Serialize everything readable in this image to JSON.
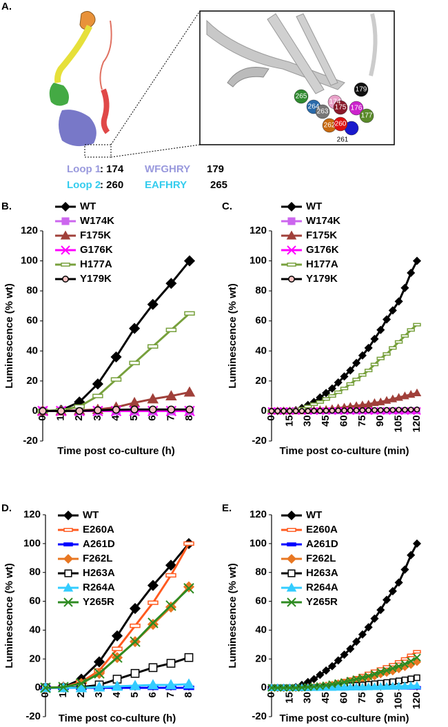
{
  "figure_a": {
    "label": "A.",
    "sphere_labels": [
      "265",
      "264",
      "263",
      "174",
      "175",
      "176",
      "177",
      "179",
      "262",
      "260",
      "261"
    ],
    "loops": [
      {
        "name": "Loop 1",
        "start": ": 174",
        "sequence": "WFGHRY",
        "end": "179"
      },
      {
        "name": "Loop 2",
        "start": ": 260",
        "sequence": "EAFHRY",
        "end": "265"
      }
    ]
  },
  "chart_data": [
    {
      "type": "line",
      "panel_label": "B.",
      "y_label": "Luminescence (% wt)",
      "x_label": "Time post co-culture (h)",
      "x": [
        0,
        1,
        2,
        3,
        4,
        5,
        6,
        7,
        8
      ],
      "xlim": [
        0,
        8
      ],
      "xticks": [
        0,
        1,
        2,
        3,
        4,
        5,
        6,
        7,
        8
      ],
      "ylim": [
        -20,
        120
      ],
      "yticks": [
        -20,
        0,
        20,
        40,
        60,
        80,
        100,
        120
      ],
      "series": [
        {
          "name": "WT",
          "color": "#000000",
          "marker": "diamond",
          "values": [
            0,
            0.5,
            6,
            18,
            36,
            55,
            71,
            85,
            100
          ]
        },
        {
          "name": "W174K",
          "color": "#cc66ee",
          "marker": "square",
          "values": [
            0,
            0,
            0,
            0,
            0,
            0,
            0,
            0,
            0
          ]
        },
        {
          "name": "F175K",
          "color": "#a0403a",
          "marker": "triangle",
          "values": [
            0,
            0,
            0.5,
            1,
            2.5,
            5.5,
            8,
            10,
            12.5
          ]
        },
        {
          "name": "G176K",
          "color": "#ff00ff",
          "marker": "x",
          "values": [
            0,
            0,
            0,
            0,
            0,
            0,
            0,
            0,
            0
          ]
        },
        {
          "name": "H177A",
          "color": "#77a03c",
          "marker": "dash",
          "marker_fill": "#ffffff",
          "values": [
            0,
            0.5,
            3,
            10,
            21,
            32,
            43,
            54,
            65
          ]
        },
        {
          "name": "Y179K",
          "color": "#000000",
          "marker": "circle",
          "marker_fill": "#f4c2c2",
          "values": [
            0,
            0,
            0,
            0.5,
            0.8,
            1,
            1,
            1,
            1
          ]
        }
      ]
    },
    {
      "type": "line",
      "panel_label": "C.",
      "y_label": "Luminescence (% wt)",
      "x_label": "Time post co-culture (min)",
      "x": [
        0,
        5,
        10,
        15,
        20,
        25,
        30,
        35,
        40,
        45,
        50,
        55,
        60,
        65,
        70,
        75,
        80,
        85,
        90,
        95,
        100,
        105,
        110,
        115,
        120
      ],
      "xlim": [
        0,
        120
      ],
      "xticks": [
        0,
        15,
        30,
        45,
        60,
        75,
        90,
        105,
        120
      ],
      "ylim": [
        -20,
        120
      ],
      "yticks": [
        -20,
        0,
        20,
        40,
        60,
        80,
        100,
        120
      ],
      "series": [
        {
          "name": "WT",
          "color": "#000000",
          "marker": "diamond",
          "values": [
            0,
            0,
            0,
            0,
            0.5,
            2,
            4,
            6,
            9,
            12,
            15,
            19,
            23,
            27,
            32,
            37,
            42,
            48,
            54,
            61,
            67,
            73,
            82,
            92,
            100
          ]
        },
        {
          "name": "W174K",
          "color": "#cc66ee",
          "marker": "square",
          "values": [
            0,
            0,
            0,
            0,
            0,
            0,
            0,
            0,
            0,
            0,
            0,
            0,
            0,
            0,
            0,
            0,
            0,
            0,
            0,
            0,
            0,
            0,
            0,
            0,
            0
          ]
        },
        {
          "name": "F175K",
          "color": "#a0403a",
          "marker": "triangle",
          "values": [
            0,
            0,
            0,
            0,
            0,
            0,
            0.2,
            0.5,
            0.8,
            1,
            1.5,
            2,
            2.5,
            3,
            3.5,
            4,
            4.5,
            5.5,
            6,
            7,
            8,
            9,
            10,
            11,
            12
          ]
        },
        {
          "name": "G176K",
          "color": "#ff00ff",
          "marker": "x",
          "values": [
            0,
            0,
            0,
            0,
            0,
            0,
            0,
            0,
            0,
            0,
            0,
            0,
            0,
            0,
            0,
            0,
            0,
            0,
            0,
            0,
            0,
            0,
            0,
            0,
            0
          ]
        },
        {
          "name": "H177A",
          "color": "#77a03c",
          "marker": "dash",
          "marker_fill": "#ffffff",
          "values": [
            0,
            0,
            0,
            0,
            0.5,
            1.5,
            3,
            4.5,
            6,
            8,
            10,
            12.5,
            15,
            18,
            21,
            24,
            27,
            31,
            35,
            38,
            42,
            46,
            50,
            54,
            57.5
          ]
        },
        {
          "name": "Y179K",
          "color": "#000000",
          "marker": "circle",
          "marker_fill": "#f4c2c2",
          "values": [
            0,
            0,
            0,
            0,
            0,
            0,
            0,
            0.1,
            0.1,
            0.2,
            0.2,
            0.3,
            0.3,
            0.4,
            0.4,
            0.5,
            0.5,
            0.6,
            0.6,
            0.7,
            0.7,
            0.8,
            0.8,
            0.9,
            1
          ]
        }
      ]
    },
    {
      "type": "line",
      "panel_label": "D.",
      "y_label": "Luminescence (% wt)",
      "x_label": "Time post co-culture (h)",
      "x": [
        0,
        1,
        2,
        3,
        4,
        5,
        6,
        7,
        8
      ],
      "xlim": [
        0,
        8
      ],
      "xticks": [
        0,
        1,
        2,
        3,
        4,
        5,
        6,
        7,
        8
      ],
      "ylim": [
        -20,
        120
      ],
      "yticks": [
        -20,
        0,
        20,
        40,
        60,
        80,
        100,
        120
      ],
      "series": [
        {
          "name": "WT",
          "color": "#000000",
          "marker": "diamond",
          "values": [
            0,
            0.5,
            6,
            18,
            36,
            55,
            71,
            85,
            100
          ]
        },
        {
          "name": "E260A",
          "color": "#ff5a1f",
          "marker": "dash",
          "marker_fill": "#ffffff",
          "values": [
            0,
            0.5,
            4,
            12,
            27,
            43,
            59,
            78,
            100
          ]
        },
        {
          "name": "A261D",
          "color": "#0000ff",
          "marker": "dash",
          "values": [
            0,
            0,
            0,
            0,
            0,
            0,
            0,
            0,
            0
          ]
        },
        {
          "name": "F262L",
          "color": "#e87722",
          "marker": "diamond",
          "values": [
            0,
            0.5,
            3,
            10,
            21,
            32,
            44,
            56,
            70
          ]
        },
        {
          "name": "H263A",
          "color": "#000000",
          "marker": "square",
          "marker_fill": "#ffffff",
          "values": [
            0,
            0,
            0.5,
            2,
            6,
            10,
            14,
            17,
            21
          ]
        },
        {
          "name": "R264A",
          "color": "#33ccff",
          "marker": "triangle",
          "values": [
            0,
            0,
            0,
            0.5,
            1,
            1.5,
            2,
            2,
            2.5
          ]
        },
        {
          "name": "Y265R",
          "color": "#2e8b22",
          "marker": "x",
          "values": [
            0,
            0.5,
            3,
            10,
            21,
            32,
            45,
            57,
            69
          ]
        }
      ]
    },
    {
      "type": "line",
      "panel_label": "E.",
      "y_label": "Luminescence (% wt)",
      "x_label": "Time post co-culture (min)",
      "x": [
        0,
        5,
        10,
        15,
        20,
        25,
        30,
        35,
        40,
        45,
        50,
        55,
        60,
        65,
        70,
        75,
        80,
        85,
        90,
        95,
        100,
        105,
        110,
        115,
        120
      ],
      "xlim": [
        0,
        120
      ],
      "xticks": [
        0,
        15,
        30,
        45,
        60,
        75,
        90,
        105,
        120
      ],
      "ylim": [
        -20,
        120
      ],
      "yticks": [
        -20,
        0,
        20,
        40,
        60,
        80,
        100,
        120
      ],
      "series": [
        {
          "name": "WT",
          "color": "#000000",
          "marker": "diamond",
          "values": [
            0,
            0,
            0,
            0,
            0.5,
            2,
            4,
            6,
            9,
            12,
            15,
            19,
            23,
            27,
            32,
            37,
            42,
            48,
            54,
            61,
            67,
            73,
            82,
            92,
            100
          ]
        },
        {
          "name": "E260A",
          "color": "#ff5a1f",
          "marker": "dash",
          "marker_fill": "#ffffff",
          "values": [
            0,
            0,
            0,
            0,
            0,
            0.2,
            0.5,
            1,
            1.5,
            2,
            3,
            4,
            5,
            6,
            7,
            8.5,
            10,
            11.5,
            13,
            14.5,
            16,
            18,
            20,
            22.5,
            25
          ]
        },
        {
          "name": "A261D",
          "color": "#0000ff",
          "marker": "dash",
          "values": [
            0,
            0,
            0,
            0,
            0,
            0,
            0,
            0,
            0,
            0,
            0,
            0,
            0,
            0,
            0,
            0,
            0,
            0,
            0,
            0,
            0,
            0,
            0,
            0,
            0
          ]
        },
        {
          "name": "F262L",
          "color": "#e87722",
          "marker": "diamond",
          "values": [
            0,
            0,
            0,
            0,
            0,
            0.1,
            0.4,
            0.7,
            1,
            1.5,
            2,
            3,
            3.5,
            4.5,
            5,
            6,
            7,
            8,
            9.5,
            10.5,
            11.5,
            13,
            14.5,
            16,
            18
          ]
        },
        {
          "name": "H263A",
          "color": "#000000",
          "marker": "square",
          "marker_fill": "#ffffff",
          "values": [
            0,
            0,
            0,
            0,
            0,
            0,
            0.1,
            0.2,
            0.3,
            0.5,
            0.7,
            0.9,
            1.1,
            1.4,
            1.7,
            2,
            2.4,
            2.8,
            3.2,
            3.7,
            4.2,
            4.8,
            5.5,
            6.2,
            7
          ]
        },
        {
          "name": "R264A",
          "color": "#33ccff",
          "marker": "triangle",
          "values": [
            0,
            0,
            0,
            0,
            0,
            0,
            0,
            0.1,
            0.1,
            0.2,
            0.2,
            0.3,
            0.3,
            0.4,
            0.5,
            0.5,
            0.6,
            0.7,
            0.8,
            0.9,
            1,
            1.1,
            1.2,
            1.4,
            1.5
          ]
        },
        {
          "name": "Y265R",
          "color": "#2e8b22",
          "marker": "x",
          "values": [
            0,
            0,
            0,
            0,
            0,
            0.2,
            0.5,
            0.8,
            1.2,
            1.7,
            2.5,
            3.3,
            4,
            5,
            6,
            7,
            8,
            9.5,
            11,
            12,
            13.5,
            15,
            16.5,
            18.5,
            21
          ]
        }
      ]
    }
  ]
}
